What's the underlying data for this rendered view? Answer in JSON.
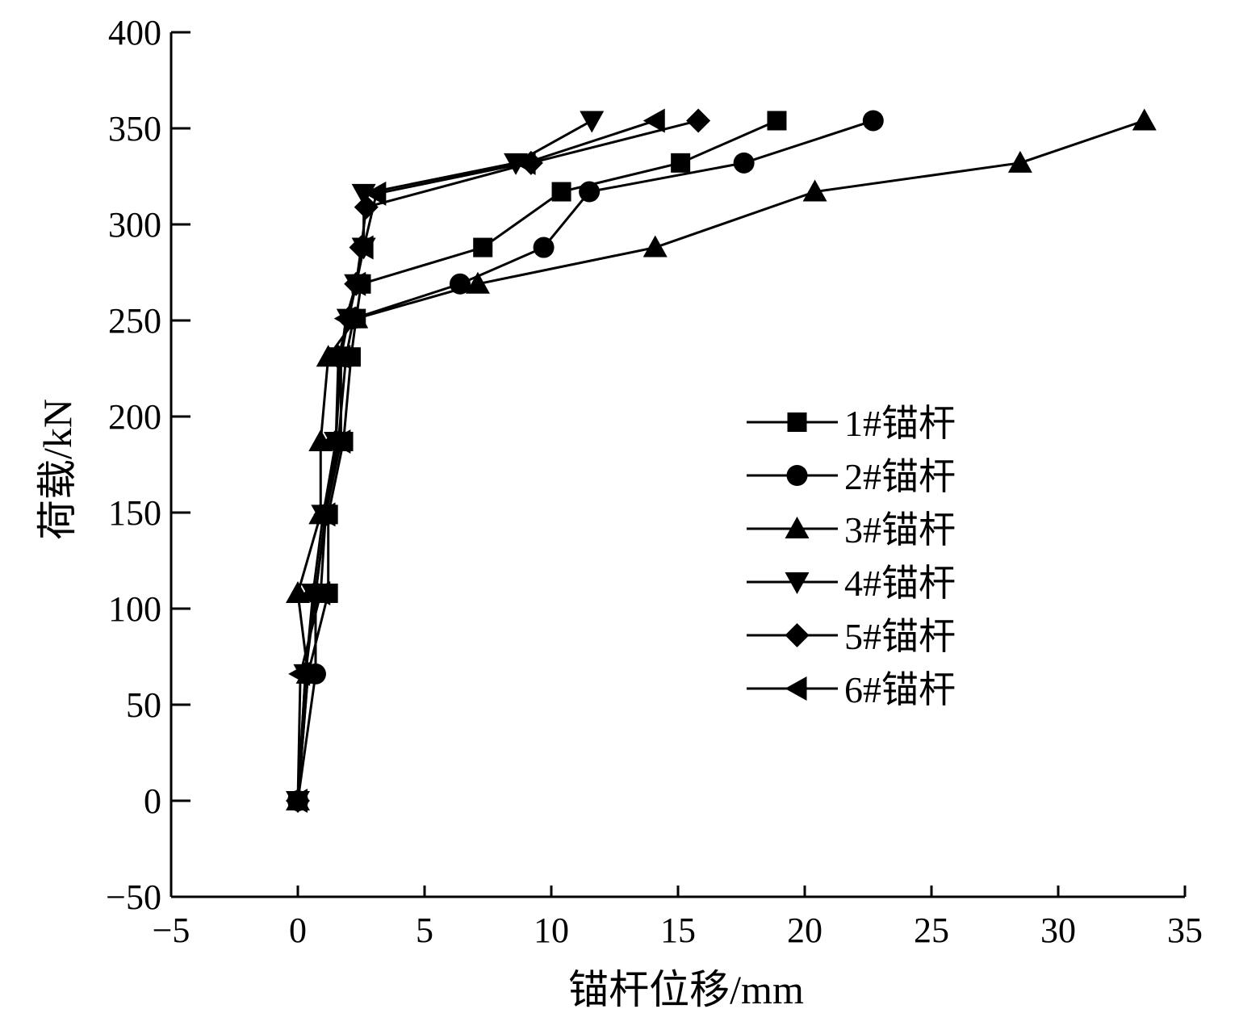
{
  "chart_data": {
    "type": "line",
    "xlabel": "锚杆位移/mm",
    "ylabel": "荷载/kN",
    "xlim": [
      -5,
      35
    ],
    "ylim": [
      -50,
      400
    ],
    "xticks": [
      -5,
      0,
      5,
      10,
      15,
      20,
      25,
      30,
      35
    ],
    "yticks": [
      -50,
      0,
      50,
      100,
      150,
      200,
      250,
      300,
      350,
      400
    ],
    "xtick_labels": [
      "−5",
      "0",
      "5",
      "10",
      "15",
      "20",
      "25",
      "30",
      "35"
    ],
    "ytick_labels": [
      "−50",
      "0",
      "50",
      "100",
      "150",
      "200",
      "250",
      "300",
      "350",
      "400"
    ],
    "grid": false,
    "legend_position": "right-center",
    "series": [
      {
        "name": "1#锚杆",
        "marker": "square",
        "points": [
          [
            0,
            0
          ],
          [
            0.4,
            66
          ],
          [
            1.2,
            108
          ],
          [
            1.2,
            149
          ],
          [
            1.8,
            187
          ],
          [
            2.1,
            231
          ],
          [
            2.3,
            251
          ],
          [
            2.5,
            269
          ],
          [
            7.3,
            288
          ],
          [
            10.4,
            317
          ],
          [
            15.1,
            332
          ],
          [
            18.9,
            354
          ]
        ]
      },
      {
        "name": "2#锚杆",
        "marker": "circle",
        "points": [
          [
            0,
            0
          ],
          [
            0.7,
            66
          ],
          [
            0.7,
            108
          ],
          [
            1.1,
            149
          ],
          [
            1.6,
            187
          ],
          [
            1.9,
            231
          ],
          [
            2.2,
            251
          ],
          [
            6.4,
            269
          ],
          [
            9.7,
            288
          ],
          [
            11.5,
            317
          ],
          [
            17.6,
            332
          ],
          [
            22.7,
            354
          ]
        ]
      },
      {
        "name": "3#锚杆",
        "marker": "triangle-up",
        "points": [
          [
            0,
            0
          ],
          [
            0.4,
            66
          ],
          [
            0,
            108
          ],
          [
            0.9,
            149
          ],
          [
            0.9,
            187
          ],
          [
            1.2,
            231
          ],
          [
            2.3,
            251
          ],
          [
            7.1,
            269
          ],
          [
            14.1,
            288
          ],
          [
            20.4,
            317
          ],
          [
            28.5,
            332
          ],
          [
            33.4,
            354
          ]
        ]
      },
      {
        "name": "4#锚杆",
        "marker": "triangle-down",
        "points": [
          [
            0,
            0
          ],
          [
            0.3,
            66
          ],
          [
            0.6,
            108
          ],
          [
            1.0,
            149
          ],
          [
            1.5,
            187
          ],
          [
            1.7,
            231
          ],
          [
            2.0,
            251
          ],
          [
            2.3,
            269
          ],
          [
            2.6,
            288
          ],
          [
            2.6,
            316
          ],
          [
            8.6,
            332
          ],
          [
            11.6,
            354
          ]
        ]
      },
      {
        "name": "5#锚杆",
        "marker": "diamond",
        "points": [
          [
            0,
            0
          ],
          [
            0.3,
            66
          ],
          [
            0.7,
            108
          ],
          [
            1.1,
            149
          ],
          [
            1.5,
            187
          ],
          [
            1.6,
            231
          ],
          [
            2.0,
            251
          ],
          [
            2.3,
            269
          ],
          [
            2.5,
            288
          ],
          [
            2.7,
            309
          ],
          [
            9.2,
            332
          ],
          [
            15.8,
            354
          ]
        ]
      },
      {
        "name": "6#锚杆",
        "marker": "triangle-left",
        "points": [
          [
            0,
            0
          ],
          [
            0.1,
            66
          ],
          [
            0.9,
            108
          ],
          [
            1.1,
            149
          ],
          [
            1.7,
            187
          ],
          [
            1.7,
            231
          ],
          [
            1.9,
            251
          ],
          [
            2.3,
            269
          ],
          [
            2.6,
            288
          ],
          [
            3.1,
            316
          ],
          [
            9.0,
            332
          ],
          [
            14.1,
            354
          ]
        ]
      }
    ]
  }
}
